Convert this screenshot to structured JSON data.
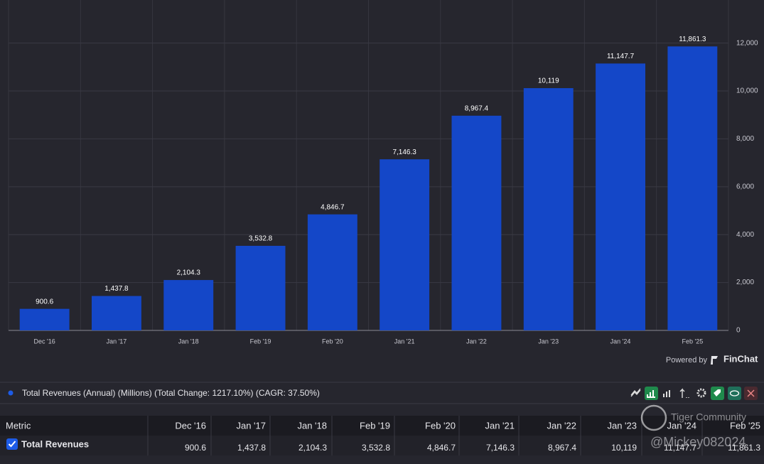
{
  "chart_data": {
    "type": "bar",
    "categories": [
      "Dec '16",
      "Jan '17",
      "Jan '18",
      "Feb '19",
      "Feb '20",
      "Jan '21",
      "Jan '22",
      "Jan '23",
      "Jan '24",
      "Feb '25"
    ],
    "values": [
      900.6,
      1437.8,
      2104.3,
      3532.8,
      4846.7,
      7146.3,
      8967.4,
      10119,
      11147.7,
      11861.3
    ],
    "value_labels": [
      "900.6",
      "1,437.8",
      "2,104.3",
      "3,532.8",
      "4,846.7",
      "7,146.3",
      "8,967.4",
      "10,119",
      "11,147.7",
      "11,861.3"
    ],
    "color": "#1447c8",
    "ylim": [
      0,
      13800
    ],
    "yticks": [
      0,
      {
        "value": 2000,
        "label": "2,000"
      },
      {
        "value": 4000,
        "label": "4,000"
      },
      {
        "value": 6000,
        "label": "6,000"
      },
      {
        "value": 8000,
        "label": "8,000"
      },
      {
        "value": 10000,
        "label": "10,000"
      },
      {
        "value": 12000,
        "label": "12,000"
      }
    ],
    "grid": true,
    "legend": "Total Revenues (Annual) (Millions) (Total Change: 1217.10%) (CAGR: 37.50%)"
  },
  "branding": {
    "powered_by": "Powered by",
    "brand": "FinChat"
  },
  "table": {
    "metric_header": "Metric",
    "row_name": "Total Revenues"
  },
  "watermark": {
    "site": "Tiger Community",
    "user": "@Mickey082024"
  }
}
